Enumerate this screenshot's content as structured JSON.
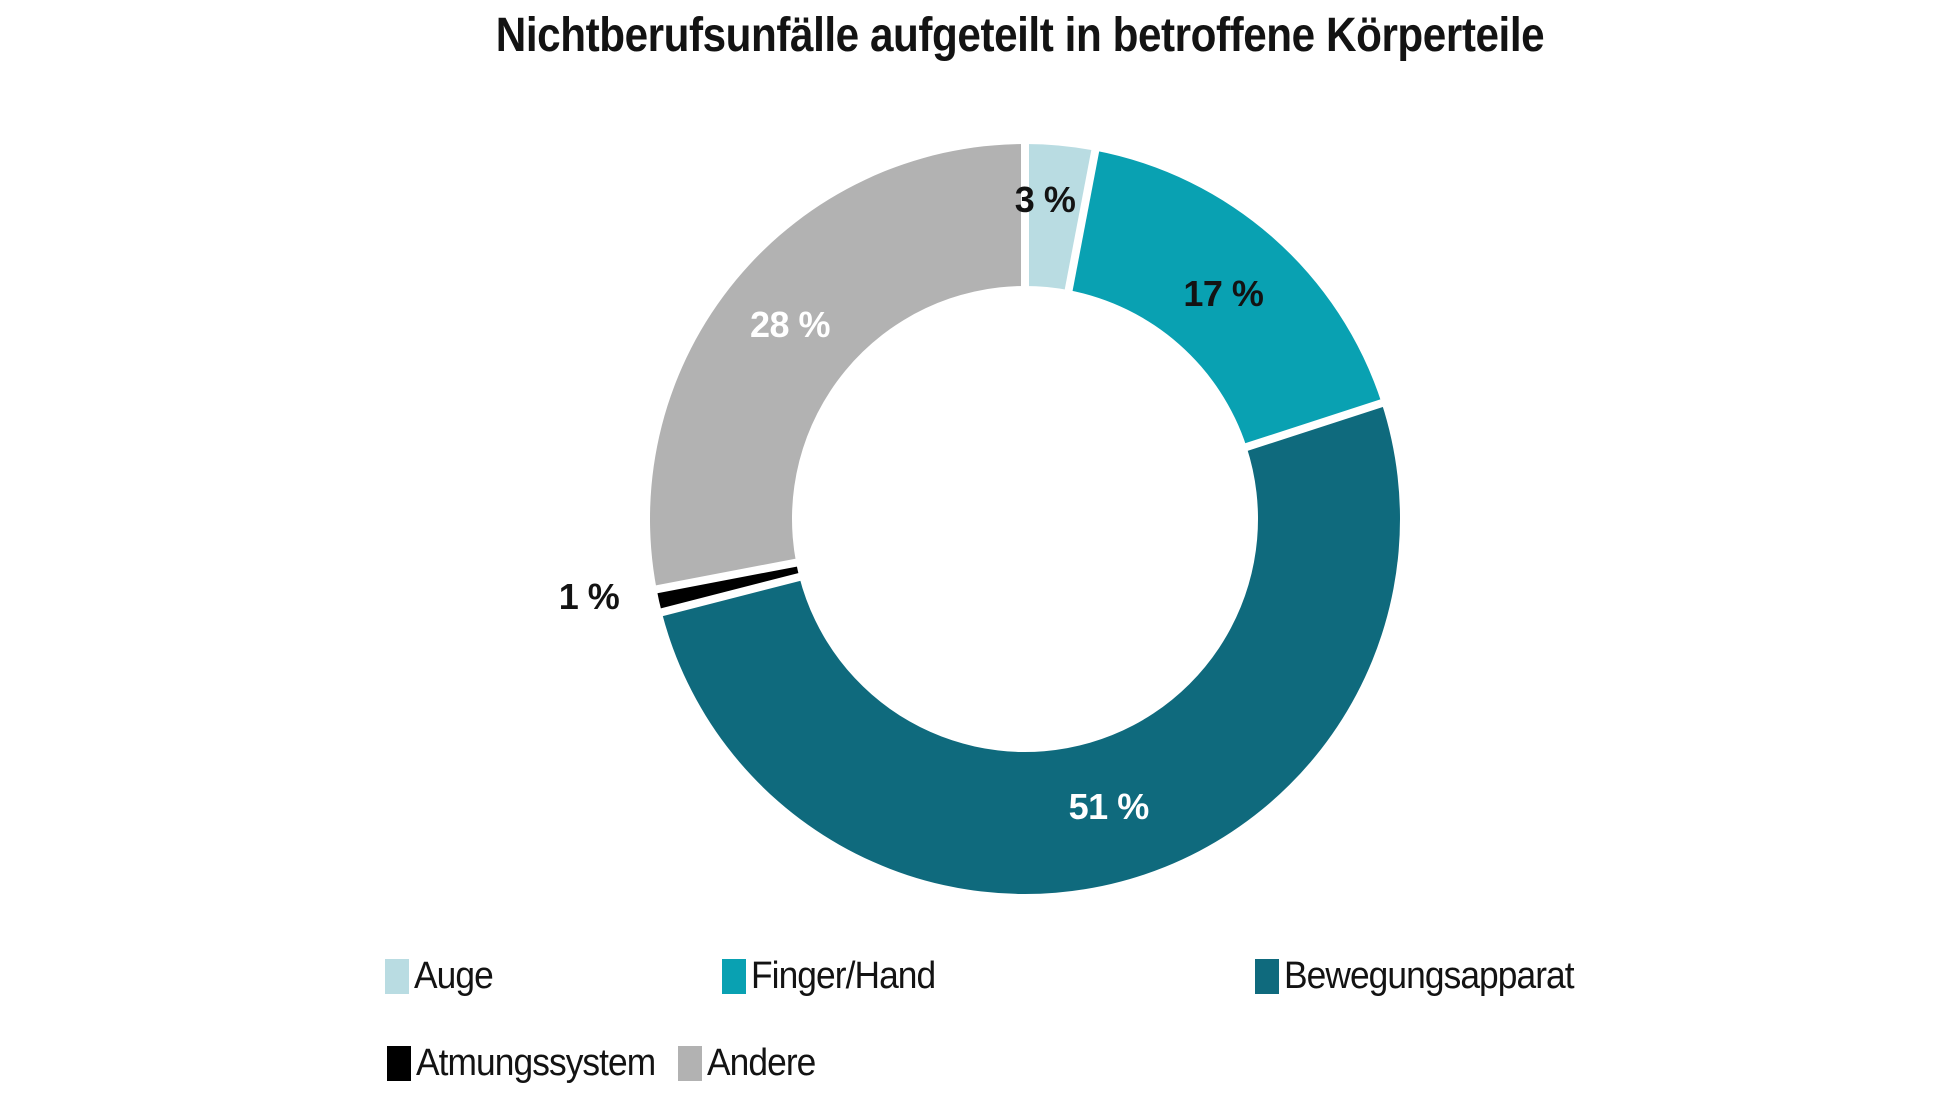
{
  "chart_data": {
    "type": "pie",
    "donut": true,
    "title": "Nichtberufsunfälle aufgeteilt in betroffene Körperteile",
    "unit": "%",
    "start_angle_deg": 0,
    "direction": "clockwise",
    "legend_position": "bottom-left",
    "categories": [
      "Auge",
      "Finger/Hand",
      "Bewegungsapparat",
      "Atmungssystem",
      "Andere"
    ],
    "values": [
      3,
      17,
      51,
      1,
      28
    ],
    "segments": [
      {
        "label": "Auge",
        "value": 3,
        "pct_label": "3 %",
        "color": "#b9dce2",
        "label_color": "#131313"
      },
      {
        "label": "Finger/Hand",
        "value": 17,
        "pct_label": "17 %",
        "color": "#09a1b2",
        "label_color": "#131313"
      },
      {
        "label": "Bewegungsapparat",
        "value": 51,
        "pct_label": "51 %",
        "color": "#0f6a7d",
        "label_color": "#ffffff"
      },
      {
        "label": "Atmungssystem",
        "value": 1,
        "pct_label": "1 %",
        "color": "#000000",
        "label_color": "#131313"
      },
      {
        "label": "Andere",
        "value": 28,
        "pct_label": "28 %",
        "color": "#b2b2b2",
        "label_color": "#ffffff"
      }
    ]
  }
}
